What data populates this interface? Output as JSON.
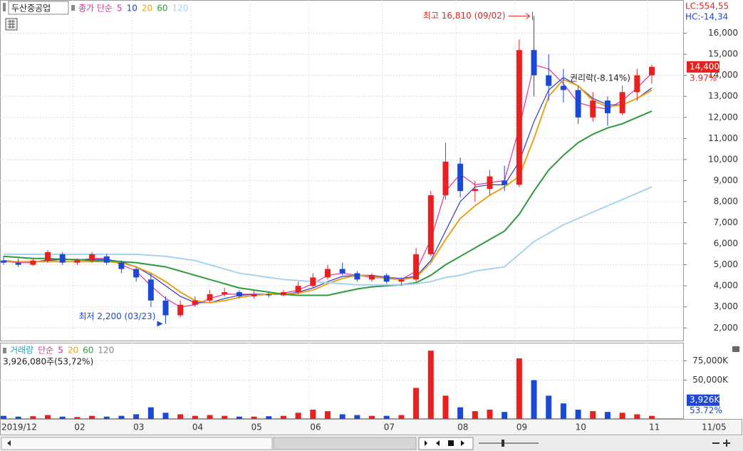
{
  "header": {
    "stock": "두산중공업",
    "legend_prefix": "종가 단순",
    "lc": "LC:554,55",
    "hc": "HC:-14,34"
  },
  "chart_data": [
    {
      "type": "candlestick",
      "categories": [
        "2019/12",
        null,
        null,
        null,
        null,
        "02",
        null,
        null,
        null,
        "03",
        null,
        null,
        null,
        "04",
        null,
        null,
        null,
        "05",
        null,
        null,
        null,
        "06",
        null,
        null,
        null,
        null,
        "07",
        null,
        null,
        null,
        null,
        "08",
        null,
        null,
        null,
        "09",
        null,
        null,
        null,
        "10",
        null,
        null,
        null,
        null,
        "11"
      ],
      "last_date": "11/05",
      "up_color": "#e8201f",
      "down_color": "#1c48d6",
      "open": [
        5200,
        5100,
        5000,
        5200,
        5500,
        5100,
        5200,
        5400,
        5100,
        4800,
        4300,
        3300,
        2600,
        3100,
        3300,
        3600,
        3700,
        3500,
        3600,
        3550,
        3700,
        4000,
        4400,
        4800,
        4600,
        4300,
        4500,
        4200,
        4300,
        5500,
        8300,
        9800,
        8500,
        8600,
        9000,
        8800,
        15200,
        14000,
        13500,
        13300,
        12000,
        12800,
        12200,
        13200,
        14000
      ],
      "high": [
        5400,
        5300,
        5300,
        5700,
        5600,
        5300,
        5600,
        5500,
        5200,
        4900,
        4600,
        3500,
        3300,
        3500,
        3800,
        3900,
        3800,
        3800,
        3700,
        3800,
        4200,
        4600,
        5000,
        5100,
        4700,
        4600,
        4600,
        4400,
        5800,
        8500,
        10800,
        10100,
        9000,
        9500,
        9700,
        15700,
        16810,
        15000,
        14300,
        13500,
        13200,
        13000,
        13500,
        14300,
        14500
      ],
      "low": [
        5000,
        4900,
        4950,
        5100,
        5000,
        5000,
        5100,
        5000,
        4600,
        4200,
        3000,
        2200,
        2500,
        3000,
        3200,
        3500,
        3400,
        3400,
        3450,
        3500,
        3600,
        3900,
        4300,
        4500,
        4200,
        4200,
        4100,
        4000,
        4200,
        5400,
        8100,
        8200,
        8000,
        8300,
        8500,
        8700,
        13000,
        12800,
        12700,
        11700,
        11800,
        11600,
        12100,
        12800,
        13600
      ],
      "close": [
        5100,
        5000,
        5200,
        5600,
        5100,
        5200,
        5500,
        5100,
        4800,
        4400,
        3300,
        2600,
        3100,
        3300,
        3600,
        3700,
        3500,
        3600,
        3550,
        3700,
        4000,
        4400,
        4800,
        4600,
        4300,
        4500,
        4200,
        4300,
        5500,
        8300,
        9900,
        8500,
        8600,
        9200,
        8800,
        15200,
        14000,
        13500,
        13300,
        12000,
        12800,
        12200,
        13200,
        14000,
        14400
      ],
      "series": [
        {
          "name": "5",
          "color": "#e0329b",
          "values": [
            5150,
            5100,
            5100,
            5250,
            5300,
            5200,
            5300,
            5300,
            5000,
            4700,
            4000,
            3400,
            3000,
            3100,
            3400,
            3600,
            3600,
            3600,
            3600,
            3650,
            3800,
            4100,
            4500,
            4600,
            4500,
            4400,
            4350,
            4300,
            4700,
            6200,
            8500,
            9300,
            8800,
            8900,
            9000,
            11500,
            14500,
            14300,
            13600,
            12700,
            12500,
            12400,
            12800,
            13400,
            14100
          ]
        },
        {
          "name": "10",
          "color": "#2c39d0",
          "values": [
            5200,
            5150,
            5150,
            5200,
            5250,
            5250,
            5250,
            5250,
            5150,
            4900,
            4500,
            4000,
            3500,
            3200,
            3200,
            3400,
            3550,
            3600,
            3600,
            3600,
            3700,
            3900,
            4200,
            4450,
            4500,
            4500,
            4400,
            4350,
            4450,
            5200,
            6600,
            8000,
            8700,
            8800,
            8800,
            9900,
            11800,
            13300,
            13900,
            13500,
            12900,
            12600,
            12600,
            12900,
            13400
          ]
        },
        {
          "name": "20",
          "color": "#eba21a",
          "values": [
            5150,
            5150,
            5150,
            5150,
            5150,
            5150,
            5150,
            5150,
            5100,
            4900,
            4600,
            4200,
            3700,
            3300,
            3200,
            3300,
            3450,
            3550,
            3600,
            3600,
            3650,
            3800,
            4100,
            4350,
            4500,
            4450,
            4350,
            4300,
            4400,
            5100,
            6200,
            7200,
            7800,
            8300,
            8700,
            9200,
            11000,
            13000,
            13800,
            13500,
            12800,
            12500,
            12600,
            12900,
            13300
          ]
        },
        {
          "name": "60",
          "color": "#2e9a3c",
          "values": [
            5400,
            5350,
            5300,
            5300,
            5250,
            5250,
            5200,
            5200,
            5150,
            5100,
            5000,
            4900,
            4700,
            4500,
            4300,
            4100,
            3900,
            3800,
            3700,
            3600,
            3550,
            3550,
            3550,
            3700,
            3850,
            3950,
            4000,
            4050,
            4150,
            4500,
            5000,
            5400,
            5800,
            6200,
            6600,
            7400,
            8500,
            9500,
            10200,
            10800,
            11200,
            11500,
            11700,
            12000,
            12300
          ]
        },
        {
          "name": "120",
          "color": "#a6d4f0",
          "values": [
            5500,
            5500,
            5500,
            5500,
            5500,
            5500,
            5500,
            5500,
            5500,
            5500,
            5450,
            5400,
            5300,
            5200,
            5000,
            4800,
            4600,
            4500,
            4400,
            4300,
            4250,
            4200,
            4150,
            4100,
            4050,
            4050,
            4050,
            4050,
            4100,
            4200,
            4400,
            4500,
            4700,
            4800,
            4900,
            5500,
            6100,
            6500,
            6900,
            7200,
            7500,
            7800,
            8100,
            8400,
            8700
          ]
        }
      ],
      "ylim": [
        1400,
        16900
      ],
      "yticks": [
        {
          "value": 2000,
          "label": "2,000"
        },
        {
          "value": 3000,
          "label": "3,000"
        },
        {
          "value": 4000,
          "label": "4,000"
        },
        {
          "value": 5000,
          "label": "5,000"
        },
        {
          "value": 6000,
          "label": "6,000"
        },
        {
          "value": 7000,
          "label": "7,000"
        },
        {
          "value": 8000,
          "label": "8,000"
        },
        {
          "value": 9000,
          "label": "9,000"
        },
        {
          "value": 10000,
          "label": "10,000"
        },
        {
          "value": 11000,
          "label": "11,000"
        },
        {
          "value": 12000,
          "label": "12,000"
        },
        {
          "value": 13000,
          "label": "13,000"
        },
        {
          "value": 14000,
          "label": "14,000"
        },
        {
          "value": 15000,
          "label": "15,000"
        },
        {
          "value": 16000,
          "label": "16,000"
        }
      ],
      "grid": true,
      "last_price_label": "14,400",
      "change_label": "3.97%",
      "annotations": {
        "high": "최고 16,810 (09/02)",
        "low": "최저 2,200 (03/23)",
        "rights": "권리락(-8.14%)"
      }
    },
    {
      "type": "bar",
      "legend": [
        "거래량",
        "단순",
        "5",
        "20",
        "60",
        "120"
      ],
      "legend_colors": [
        "#22a0b8",
        "#e0329b",
        "#e0329b",
        "#eba21a",
        "#2e9a3c",
        "#888888"
      ],
      "summary": "3,926,080주(53,72%)",
      "values": [
        4000,
        3000,
        3500,
        5000,
        3000,
        2500,
        4000,
        3000,
        4000,
        6000,
        15000,
        8000,
        6000,
        4000,
        5000,
        4000,
        3000,
        3000,
        3500,
        4000,
        8000,
        12000,
        10000,
        6000,
        5000,
        4000,
        4000,
        5000,
        40000,
        88000,
        30000,
        15000,
        10000,
        12000,
        9000,
        78000,
        50000,
        30000,
        20000,
        12000,
        10000,
        9000,
        8000,
        6000,
        3926
      ],
      "last_value_label": "3,926K",
      "last_ratio": "53.72%",
      "ylim": [
        0,
        90000
      ],
      "yticks": [
        {
          "value": 75000,
          "label": "75,000K"
        },
        {
          "value": 50000,
          "label": "50,000K"
        }
      ],
      "grid": true
    }
  ]
}
